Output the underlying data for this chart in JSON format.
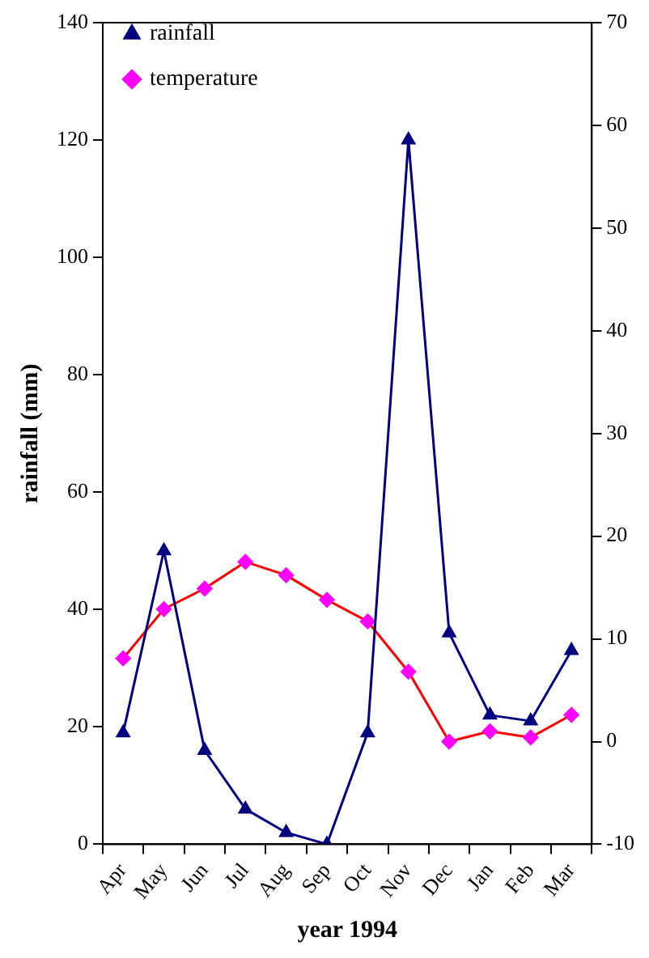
{
  "chart_data": {
    "type": "line",
    "xlabel": "year 1994",
    "ylabel": "rainfall (mm)",
    "categories": [
      "Apr",
      "May",
      "Jun",
      "Jul",
      "Aug",
      "Sep",
      "Oct",
      "Nov",
      "Dec",
      "Jan",
      "Feb",
      "Mar"
    ],
    "series": [
      {
        "name": "rainfall",
        "color": "#000080",
        "marker": "triangle",
        "values": [
          19,
          50,
          16,
          6,
          2,
          0,
          19,
          120,
          36,
          22,
          21,
          33
        ]
      },
      {
        "name": "temperature",
        "color": "#ff0000",
        "marker": "diamond",
        "axis": "y2",
        "colors": [
          "#ff00ff",
          "#ff00ff",
          "#ff00ff",
          "#ff00ff",
          "#ff00ff",
          "#ff00ff",
          "#ff00ff",
          "#ff00ff",
          "#ff00ff",
          "#ff00ff",
          "#ff00ff",
          "#ff00ff"
        ],
        "values": [
          8.1,
          12.9,
          14.9,
          17.5,
          16.2,
          13.8,
          11.7,
          6.8,
          0,
          1.0,
          0.4,
          2.6
        ]
      }
    ],
    "ylim": [
      0,
      140
    ],
    "yticks": [
      0,
      20,
      40,
      60,
      80,
      100,
      120,
      140
    ],
    "y2lim": [
      -10,
      70
    ],
    "y2ticks": [
      -10,
      0,
      10,
      20,
      30,
      40,
      50,
      60,
      70
    ],
    "grid": false,
    "legend": "top left",
    "line_style": "solid"
  }
}
